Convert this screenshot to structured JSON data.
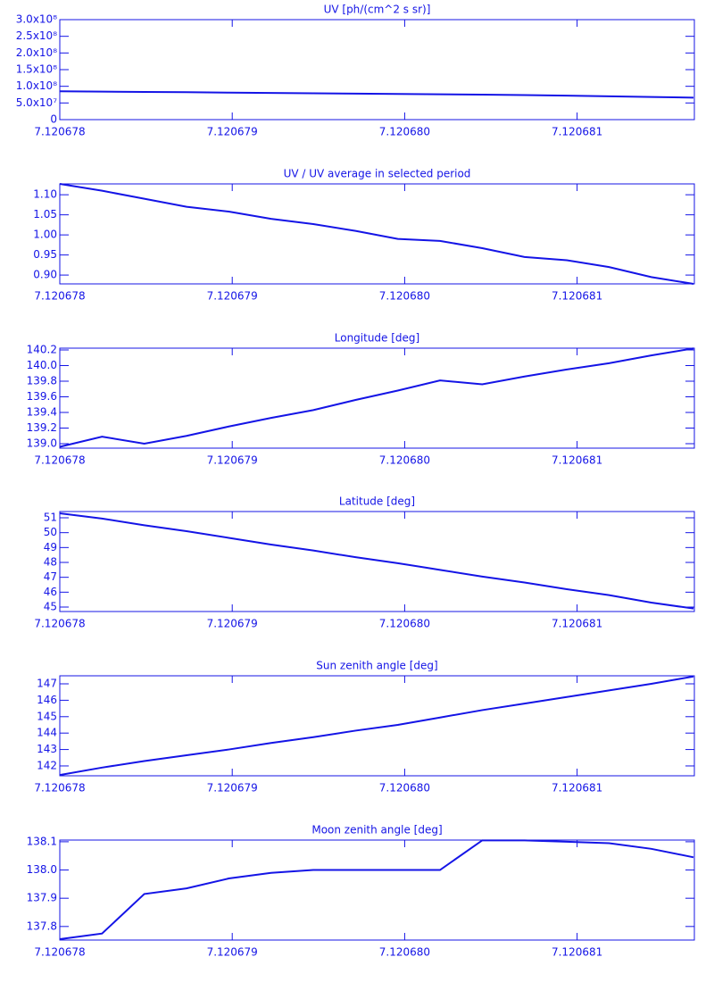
{
  "chart_data": [
    {
      "type": "line",
      "title": "UV [ph/(cm^2 s sr)]",
      "color": "#1414e6",
      "x": [
        7.120678,
        7.120678245,
        7.12067849,
        7.120678735,
        7.12067898,
        7.120679225,
        7.12067947,
        7.120679715,
        7.12067996,
        7.120680205,
        7.12068045,
        7.120680695,
        7.12068094,
        7.120681185,
        7.12068143,
        7.120681675
      ],
      "values": [
        85000000,
        84000000,
        83000000,
        82500000,
        81000000,
        80000000,
        79000000,
        78000000,
        77000000,
        76000000,
        75000000,
        73500000,
        72000000,
        70000000,
        68000000,
        66000000
      ],
      "xlim": [
        7.120678,
        7.12068168
      ],
      "xticks": [
        7.120678,
        7.120679,
        {
          "value": 7.12068,
          "label": "7.120680"
        },
        7.120681
      ],
      "ylim": [
        0,
        300000000
      ],
      "yticks": [
        0,
        {
          "value": 50000000,
          "label": "5.0x10⁷"
        },
        {
          "value": 100000000,
          "label": "1.0x10⁸"
        },
        {
          "value": 150000000,
          "label": "1.5x10⁸"
        },
        {
          "value": 200000000,
          "label": "2.0x10⁸"
        },
        {
          "value": 250000000,
          "label": "2.5x10⁸"
        },
        {
          "value": 300000000,
          "label": "3.0x10⁸"
        }
      ],
      "grid": false
    },
    {
      "type": "line",
      "title": "UV / UV average in selected period",
      "color": "#1414e6",
      "x": [
        7.120678,
        7.120678245,
        7.12067849,
        7.120678735,
        7.12067898,
        7.120679225,
        7.12067947,
        7.120679715,
        7.12067996,
        7.120680205,
        7.12068045,
        7.120680695,
        7.12068094,
        7.120681185,
        7.12068143,
        7.120681675
      ],
      "values": [
        1.127,
        1.11,
        1.09,
        1.07,
        1.058,
        1.04,
        1.027,
        1.01,
        0.99,
        0.985,
        0.967,
        0.945,
        0.937,
        0.92,
        0.895,
        0.878
      ],
      "xlim": [
        7.120678,
        7.12068168
      ],
      "xticks": [
        7.120678,
        7.120679,
        {
          "value": 7.12068,
          "label": "7.120680"
        },
        7.120681
      ],
      "ylim": [
        0.878,
        1.127
      ],
      "yticks": [
        {
          "value": 0.9,
          "label": "0.90"
        },
        0.95,
        {
          "value": 1,
          "label": "1.00"
        },
        1.05,
        {
          "value": 1.1,
          "label": "1.10"
        }
      ],
      "grid": false
    },
    {
      "type": "line",
      "title": "Longitude [deg]",
      "color": "#1414e6",
      "x": [
        7.120678,
        7.120678245,
        7.12067849,
        7.120678735,
        7.12067898,
        7.120679225,
        7.12067947,
        7.120679715,
        7.12067996,
        7.120680205,
        7.12068045,
        7.120680695,
        7.12068094,
        7.120681185,
        7.12068143,
        7.120681675
      ],
      "values": [
        138.96,
        139.09,
        139.0,
        139.1,
        139.22,
        139.33,
        139.43,
        139.56,
        139.68,
        139.81,
        139.76,
        139.86,
        139.95,
        140.03,
        140.13,
        140.22
      ],
      "xlim": [
        7.120678,
        7.12068168
      ],
      "xticks": [
        7.120678,
        7.120679,
        {
          "value": 7.12068,
          "label": "7.120680"
        },
        7.120681
      ],
      "ylim": [
        138.943,
        140.223
      ],
      "yticks": [
        {
          "value": 139,
          "label": "139.0"
        },
        139.2,
        139.4,
        139.6,
        139.8,
        {
          "value": 140,
          "label": "140.0"
        },
        140.2
      ],
      "grid": false
    },
    {
      "type": "line",
      "title": "Latitude [deg]",
      "color": "#1414e6",
      "x": [
        7.120678,
        7.120678245,
        7.12067849,
        7.120678735,
        7.12067898,
        7.120679225,
        7.12067947,
        7.120679715,
        7.12067996,
        7.120680205,
        7.12068045,
        7.120680695,
        7.12068094,
        7.120681185,
        7.12068143,
        7.120681675
      ],
      "values": [
        51.3,
        50.95,
        50.5,
        50.1,
        49.65,
        49.2,
        48.8,
        48.35,
        47.95,
        47.5,
        47.05,
        46.65,
        46.2,
        45.8,
        45.3,
        44.9
      ],
      "xlim": [
        7.120678,
        7.12068168
      ],
      "xticks": [
        7.120678,
        7.120679,
        {
          "value": 7.12068,
          "label": "7.120680"
        },
        7.120681
      ],
      "ylim": [
        44.7,
        51.42
      ],
      "yticks": [
        45,
        46,
        47,
        48,
        49,
        50,
        51
      ],
      "grid": false
    },
    {
      "type": "line",
      "title": "Sun zenith angle [deg]",
      "color": "#1414e6",
      "x": [
        7.120678,
        7.120678245,
        7.12067849,
        7.120678735,
        7.12067898,
        7.120679225,
        7.12067947,
        7.120679715,
        7.12067996,
        7.120680205,
        7.12068045,
        7.120680695,
        7.12068094,
        7.120681185,
        7.12068143,
        7.120681675
      ],
      "values": [
        141.45,
        141.9,
        142.3,
        142.65,
        143.0,
        143.4,
        143.75,
        144.15,
        144.5,
        144.95,
        145.4,
        145.8,
        146.2,
        146.6,
        147.0,
        147.45
      ],
      "xlim": [
        7.120678,
        7.12068168
      ],
      "xticks": [
        7.120678,
        7.120679,
        {
          "value": 7.12068,
          "label": "7.120680"
        },
        7.120681
      ],
      "ylim": [
        141.4,
        147.49
      ],
      "yticks": [
        142,
        143,
        144,
        145,
        146,
        147
      ],
      "grid": false
    },
    {
      "type": "line",
      "title": "Moon zenith angle [deg]",
      "color": "#1414e6",
      "x": [
        7.120678,
        7.120678245,
        7.12067849,
        7.120678735,
        7.12067898,
        7.120679225,
        7.12067947,
        7.120679715,
        7.12067996,
        7.120680205,
        7.12068045,
        7.120680695,
        7.12068094,
        7.120681185,
        7.12068143,
        7.120681675
      ],
      "values": [
        137.755,
        137.775,
        137.915,
        137.935,
        137.97,
        137.99,
        138.0,
        138.0,
        138.0,
        138.0,
        138.105,
        138.105,
        138.1,
        138.095,
        138.075,
        138.045
      ],
      "xlim": [
        7.120678,
        7.12068168
      ],
      "xticks": [
        7.120678,
        7.120679,
        {
          "value": 7.12068,
          "label": "7.120680"
        },
        7.120681
      ],
      "ylim": [
        137.752,
        138.106
      ],
      "yticks": [
        137.8,
        137.9,
        {
          "value": 138,
          "label": "138.0"
        },
        138.1
      ],
      "grid": false
    }
  ]
}
